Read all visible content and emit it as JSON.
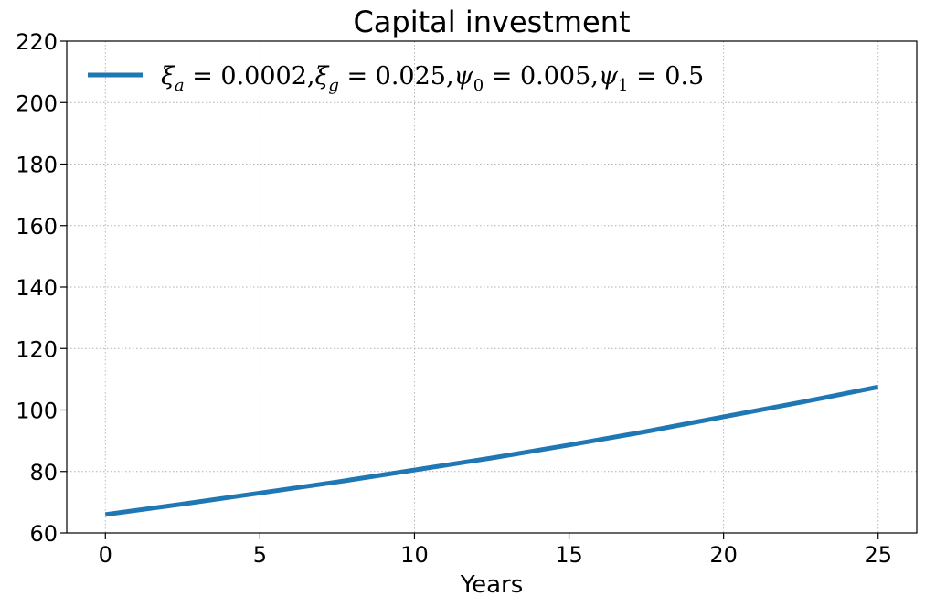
{
  "chart_data": {
    "type": "line",
    "title": "Capital investment",
    "xlabel": "Years",
    "ylabel": "",
    "xlim": [
      -1.25,
      26.25
    ],
    "ylim": [
      60,
      220
    ],
    "xticks": [
      0,
      5,
      10,
      15,
      20,
      25
    ],
    "yticks": [
      60,
      80,
      100,
      120,
      140,
      160,
      180,
      200,
      220
    ],
    "grid": true,
    "legend_position": "top-left",
    "series": [
      {
        "name": "ξ_a = 0.0002,ξ_g = 0.025,ψ_0 = 0.005,ψ_1 = 0.5",
        "color": "#1f77b4",
        "x": [
          0,
          2.5,
          5,
          7.5,
          10,
          12.5,
          15,
          17.5,
          20,
          22.5,
          25
        ],
        "y": [
          66,
          69.4,
          73,
          76.6,
          80.5,
          84.4,
          88.6,
          93,
          97.8,
          102.5,
          107.5
        ]
      }
    ]
  }
}
